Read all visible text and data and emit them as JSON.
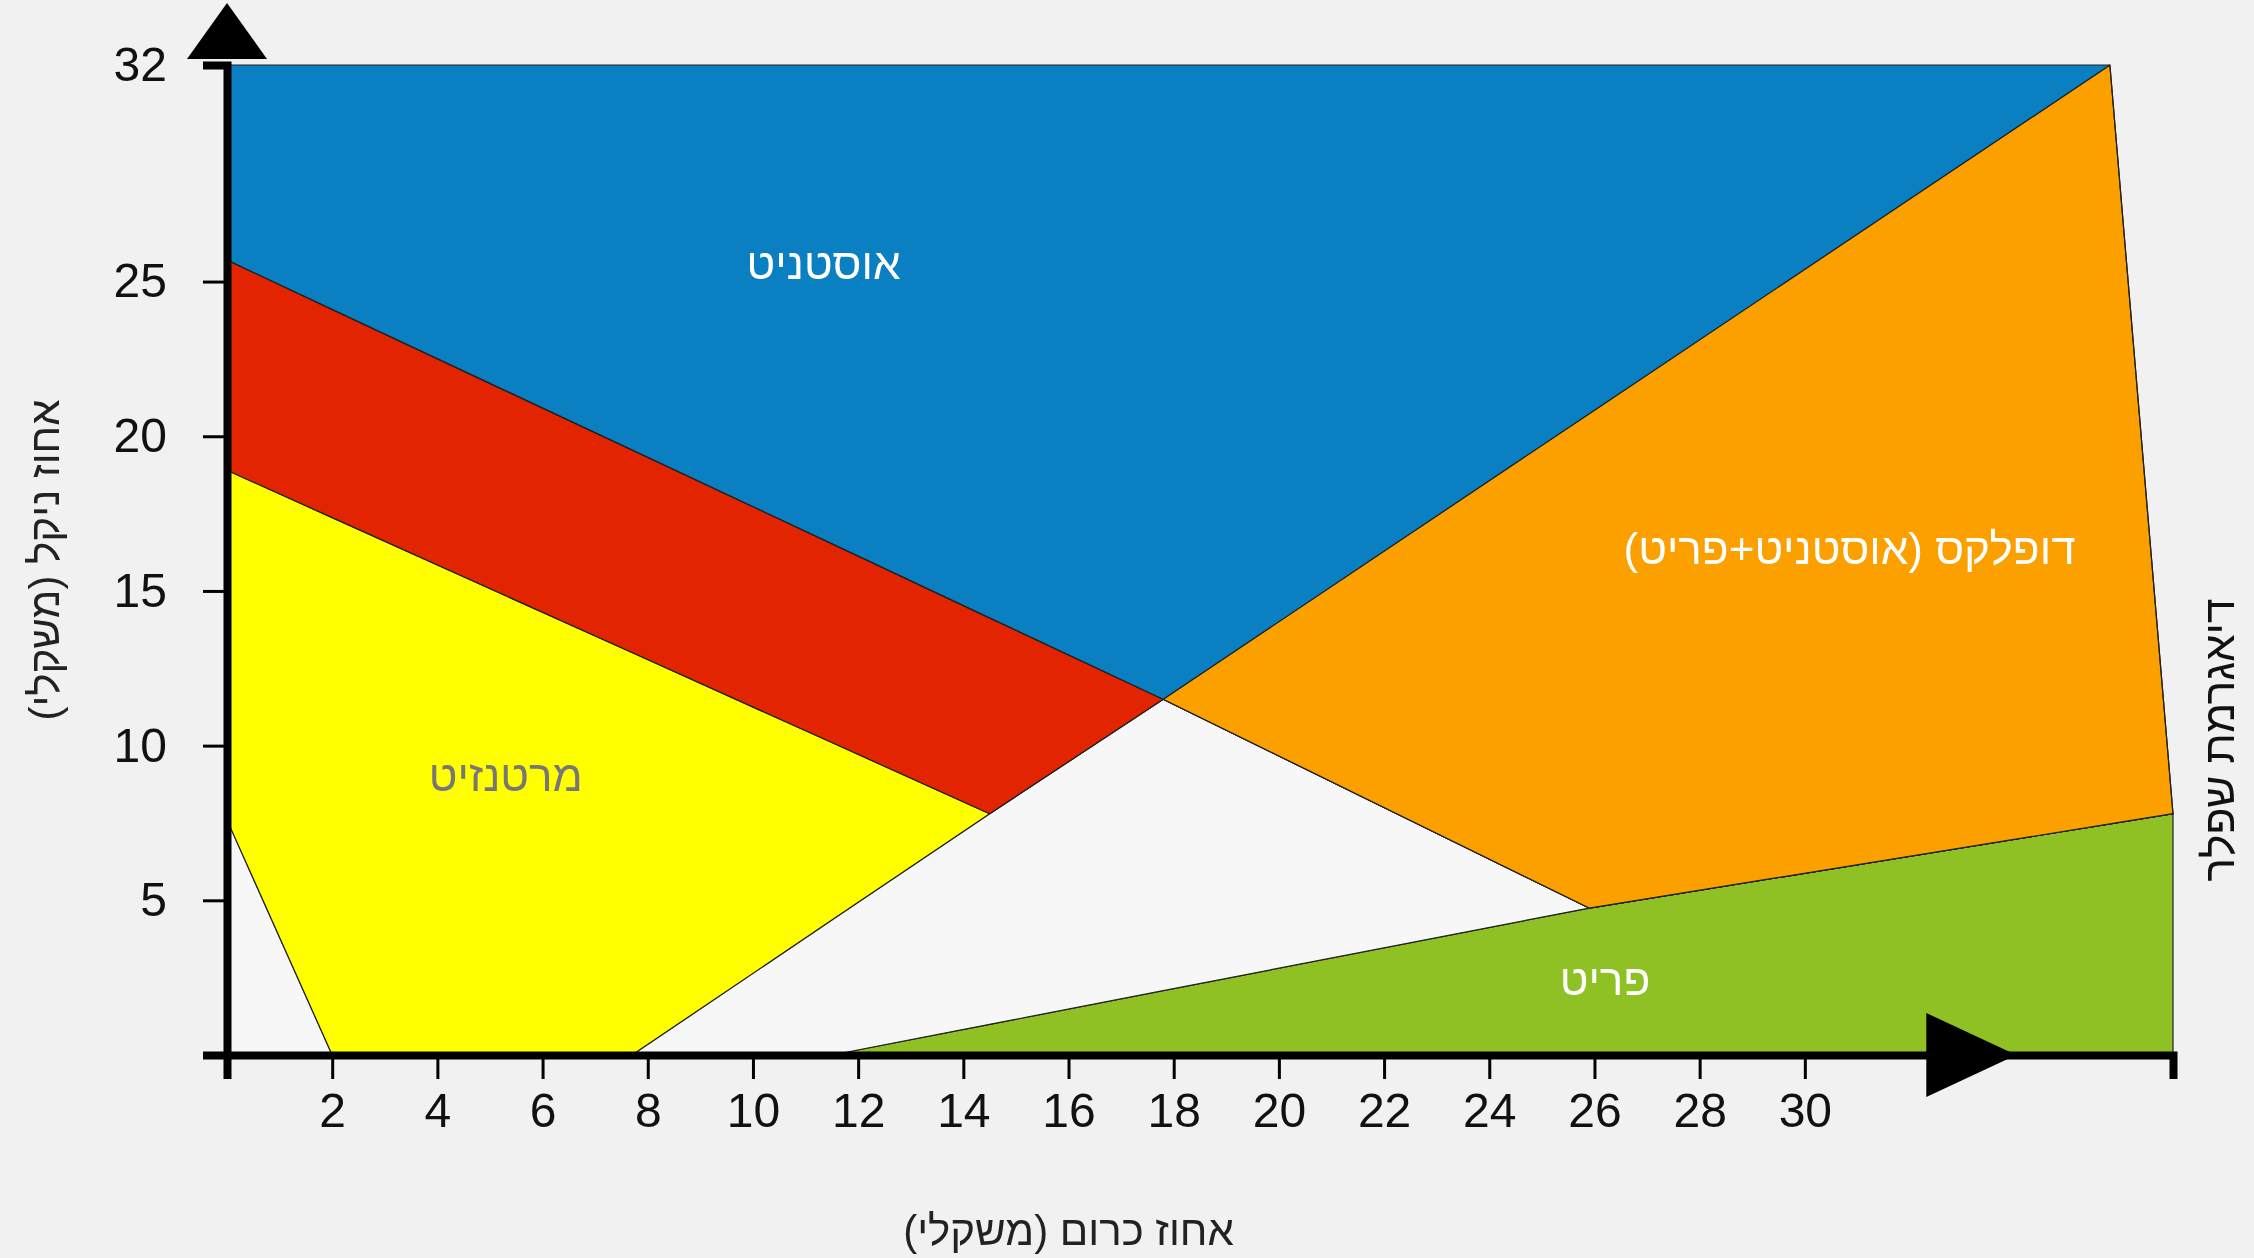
{
  "chart_data": {
    "type": "area",
    "stacked": true,
    "title": "דיאגרמת שפלר",
    "xlabel": "אחוז כרום (משקלי)",
    "ylabel": "אחוז ניקל (משקלי)",
    "xlim": [
      0,
      37
    ],
    "ylim": [
      0,
      32
    ],
    "xticks": [
      2,
      4,
      6,
      8,
      10,
      12,
      14,
      16,
      18,
      20,
      22,
      24,
      26,
      28,
      30
    ],
    "yticks": [
      5,
      10,
      15,
      20,
      25,
      32
    ],
    "x": [
      0,
      2,
      7.7,
      11.5,
      14.5,
      17.8,
      25.9,
      35.8,
      37
    ],
    "series": [
      {
        "name": "פריט",
        "color": "#8fc125",
        "values": [
          0,
          0,
          0,
          0,
          0.99,
          2.08,
          4.75,
          7.47,
          7.8
        ]
      },
      {
        "color": "#f7f7f7",
        "values": [
          7.6,
          0,
          0,
          4.36,
          6.81,
          9.42,
          0,
          0,
          0
        ]
      },
      {
        "name": "מרטנזיט",
        "color": "#ffff00",
        "values": [
          11.3,
          17.37,
          13.01,
          5.74,
          0,
          0,
          0,
          0,
          0
        ]
      },
      {
        "color": "#e32400",
        "values": [
          6.8,
          6.73,
          6.55,
          6.43,
          6.33,
          0,
          0,
          0,
          0
        ]
      },
      {
        "name": "דופלקס (אוסטניט+פריט)",
        "color": "#fca000",
        "values": [
          0,
          0,
          0,
          0,
          0,
          0,
          15.98,
          24.53,
          0
        ]
      },
      {
        "name": "אוסטניט",
        "color": "#0a7fc2",
        "values": [
          6.3,
          7.9,
          12.44,
          15.47,
          17.87,
          20.5,
          11.27,
          0,
          0
        ]
      }
    ]
  }
}
